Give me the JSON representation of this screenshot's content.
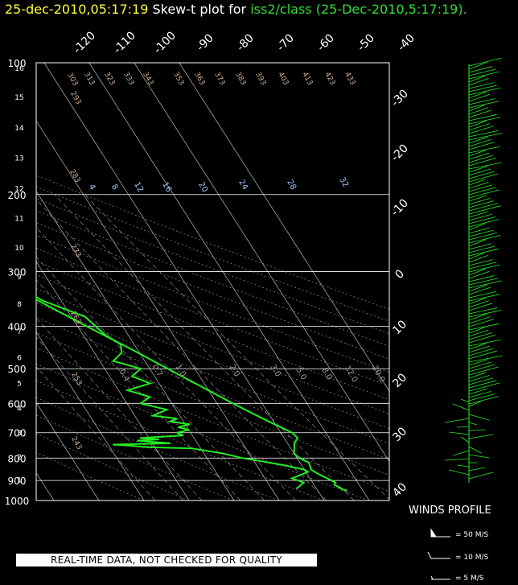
{
  "title": {
    "datetime": "25-dec-2010,05:17:19",
    "label": "Skew-t plot for",
    "station": "iss2/class",
    "station_time": "(25-Dec-2010,5:17:19)."
  },
  "quality_notice": "REAL-TIME DATA, NOT CHECKED FOR QUALITY",
  "winds": {
    "title": "WINDS PROFILE",
    "legend": [
      "= 50 M/S",
      "= 10 M/S",
      "= 5 M/S"
    ]
  },
  "colors": {
    "trace": "#22ee22",
    "date": "#ffff33",
    "station": "#33dd33",
    "grid": "#ffffff"
  },
  "chart_data": {
    "type": "line",
    "pressure_labels": [
      "100",
      "200",
      "300",
      "400",
      "500",
      "600",
      "700",
      "800",
      "900",
      "1000"
    ],
    "pressure_levels": [
      100,
      200,
      300,
      400,
      500,
      600,
      700,
      800,
      900,
      1000
    ],
    "height_labels": [
      "16",
      "15",
      "14",
      "13",
      "12",
      "11",
      "10",
      "9",
      "8",
      "7",
      "6",
      "5",
      "4",
      "3",
      "2",
      "1"
    ],
    "height_levels_km": [
      16,
      15,
      14,
      13,
      12,
      11,
      10,
      9,
      8,
      7,
      6,
      5,
      4,
      3,
      2,
      1
    ],
    "temp_labels_top": [
      "-120",
      "-110",
      "-100",
      "-90",
      "-80",
      "-70",
      "-60",
      "-50",
      "-40"
    ],
    "temp_labels_right": [
      "-30",
      "-20",
      "-10",
      "0",
      "10",
      "20",
      "30",
      "40"
    ],
    "dry_adiabat_labels": [
      "293",
      "303",
      "313",
      "323",
      "333",
      "343",
      "353",
      "363",
      "373",
      "383",
      "393",
      "403",
      "413",
      "423",
      "433",
      "283",
      "273",
      "263",
      "253",
      "243"
    ],
    "mixing_ratio_labels": [
      "4",
      "8",
      "12",
      "16",
      "20",
      "24",
      "28",
      "32"
    ],
    "sat_mixing_labels": [
      "0.4",
      "0.7",
      "1.0",
      "2.0",
      "3.0",
      "5.0",
      "8.0",
      "12.0",
      "20.0"
    ],
    "series": [
      {
        "name": "temperature",
        "pressure": [
          950,
          940,
          920,
          910,
          900,
          870,
          850,
          820,
          800,
          780,
          760,
          740,
          720,
          700,
          650,
          600,
          550,
          500,
          450,
          400,
          350,
          300,
          250,
          220,
          200,
          190,
          180,
          170,
          160,
          150,
          140,
          130,
          120,
          110,
          100
        ],
        "temp_c": [
          16.5,
          15.5,
          14.5,
          15.0,
          14.5,
          12.5,
          11.5,
          12.0,
          10.5,
          10.0,
          10.8,
          11.5,
          13.0,
          12.5,
          8.0,
          3.5,
          -1.0,
          -6.0,
          -11.5,
          -18.0,
          -25.0,
          -33.0,
          -43.0,
          -49.0,
          -53.0,
          -55.0,
          -56.0,
          -56.5,
          -58.0,
          -59.5,
          -61.0,
          -62.5,
          -64.0,
          -65.0,
          -65.5
        ]
      },
      {
        "name": "dewpoint",
        "pressure": [
          940,
          910,
          890,
          860,
          850,
          830,
          800,
          780,
          760,
          755,
          750,
          745,
          740,
          730,
          725,
          720,
          710,
          700,
          690,
          680,
          670,
          660,
          650,
          640,
          620,
          600,
          580,
          560,
          540,
          520,
          500,
          480,
          460,
          440,
          420,
          400,
          380,
          350,
          300,
          250,
          220,
          200,
          190,
          180,
          170,
          160,
          150,
          140,
          130,
          120,
          110,
          100
        ],
        "temp_c": [
          5.5,
          8.0,
          6.0,
          10.5,
          10.0,
          6.0,
          -2.0,
          -6.0,
          -12.0,
          -22.0,
          -25.0,
          -29.0,
          -16.0,
          -23.0,
          -18.0,
          -22.0,
          -12.0,
          -13.0,
          -10.0,
          -12.0,
          -9.0,
          -13.0,
          -11.0,
          -16.0,
          -12.0,
          -17.0,
          -14.0,
          -18.0,
          -12.0,
          -15.0,
          -12.0,
          -17.0,
          -14.0,
          -13.0,
          -15.0,
          -16.0,
          -17.0,
          -24.0,
          -32.0,
          -45.0,
          -54.0,
          -58.0,
          -61.0,
          -61.0,
          -63.0,
          -68.0,
          -71.0,
          -71.0,
          -72.0,
          -73.0,
          -74.0,
          -76.0
        ]
      }
    ],
    "xlim_c": [
      -40,
      40
    ],
    "ylim_hpa": [
      1000,
      100
    ],
    "grid": true
  }
}
